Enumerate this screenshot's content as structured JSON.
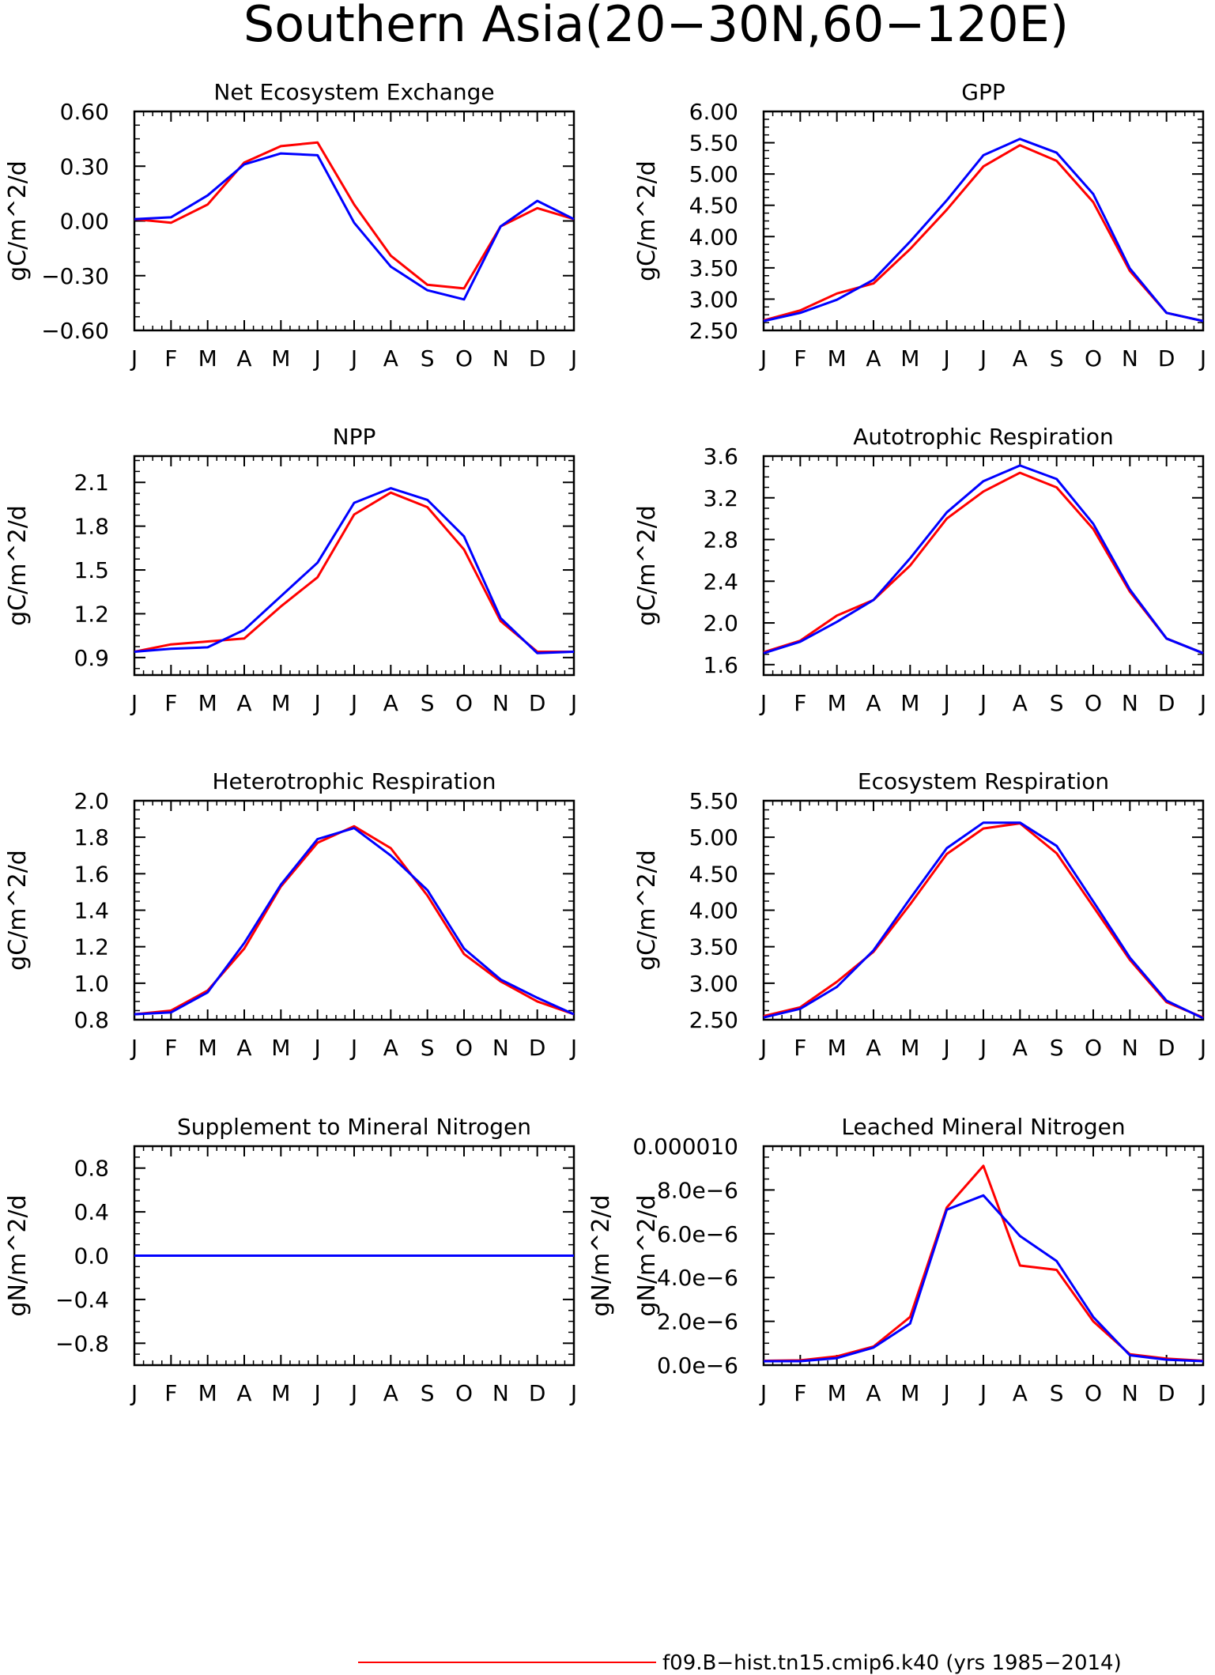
{
  "figure": {
    "title": "Southern Asia(20−30N,60−120E)",
    "legend": [
      {
        "label": "f09.B−hist.tn15.cmip6.k40 (yrs 1985−2014)",
        "color": "#ff0000"
      }
    ],
    "series_colors": [
      "#ff0000",
      "#0000ff"
    ]
  },
  "chart_data": [
    {
      "type": "line",
      "title": "Net Ecosystem Exchange",
      "ylabel": "gC/m^2/d",
      "categories": [
        "J",
        "F",
        "M",
        "A",
        "M",
        "J",
        "J",
        "A",
        "S",
        "O",
        "N",
        "D",
        "J"
      ],
      "ylim": [
        -0.6,
        0.6
      ],
      "yticks": [
        -0.6,
        -0.3,
        0.0,
        0.3,
        0.6
      ],
      "ytick_labels": [
        "−0.60",
        "−0.30",
        "0.00",
        "0.30",
        "0.60"
      ],
      "series": [
        {
          "color": "#ff0000",
          "values": [
            0.01,
            -0.01,
            0.09,
            0.32,
            0.41,
            0.43,
            0.09,
            -0.19,
            -0.35,
            -0.37,
            -0.03,
            0.07,
            0.01
          ]
        },
        {
          "color": "#0000ff",
          "values": [
            0.01,
            0.02,
            0.14,
            0.31,
            0.37,
            0.36,
            -0.01,
            -0.25,
            -0.38,
            -0.43,
            -0.03,
            0.11,
            0.01
          ]
        }
      ]
    },
    {
      "type": "line",
      "title": "GPP",
      "ylabel": "gC/m^2/d",
      "categories": [
        "J",
        "F",
        "M",
        "A",
        "M",
        "J",
        "J",
        "A",
        "S",
        "O",
        "N",
        "D",
        "J"
      ],
      "ylim": [
        2.5,
        6.0
      ],
      "yticks": [
        2.5,
        3.0,
        3.5,
        4.0,
        4.5,
        5.0,
        5.5,
        6.0
      ],
      "ytick_labels": [
        "2.50",
        "3.00",
        "3.50",
        "4.00",
        "4.50",
        "5.00",
        "5.50",
        "6.00"
      ],
      "series": [
        {
          "color": "#ff0000",
          "values": [
            2.66,
            2.82,
            3.09,
            3.25,
            3.8,
            4.43,
            5.12,
            5.46,
            5.21,
            4.55,
            3.45,
            2.78,
            2.65
          ]
        },
        {
          "color": "#0000ff",
          "values": [
            2.65,
            2.78,
            2.99,
            3.31,
            3.92,
            4.58,
            5.3,
            5.56,
            5.34,
            4.68,
            3.49,
            2.78,
            2.65
          ]
        }
      ]
    },
    {
      "type": "line",
      "title": "NPP",
      "ylabel": "gC/m^2/d",
      "categories": [
        "J",
        "F",
        "M",
        "A",
        "M",
        "J",
        "J",
        "A",
        "S",
        "O",
        "N",
        "D",
        "J"
      ],
      "ylim": [
        0.78,
        2.28
      ],
      "yticks": [
        0.9,
        1.2,
        1.5,
        1.8,
        2.1
      ],
      "ytick_labels": [
        "0.9",
        "1.2",
        "1.5",
        "1.8",
        "2.1"
      ],
      "series": [
        {
          "color": "#ff0000",
          "values": [
            0.94,
            0.99,
            1.01,
            1.03,
            1.25,
            1.45,
            1.88,
            2.03,
            1.93,
            1.64,
            1.15,
            0.94,
            0.94
          ]
        },
        {
          "color": "#0000ff",
          "values": [
            0.94,
            0.96,
            0.97,
            1.09,
            1.32,
            1.55,
            1.96,
            2.06,
            1.98,
            1.73,
            1.17,
            0.93,
            0.94
          ]
        }
      ]
    },
    {
      "type": "line",
      "title": "Autotrophic Respiration",
      "ylabel": "gC/m^2/d",
      "categories": [
        "J",
        "F",
        "M",
        "A",
        "M",
        "J",
        "J",
        "A",
        "S",
        "O",
        "N",
        "D",
        "J"
      ],
      "ylim": [
        1.5,
        3.6
      ],
      "yticks": [
        1.6,
        2.0,
        2.4,
        2.8,
        3.2,
        3.6
      ],
      "ytick_labels": [
        "1.6",
        "2.0",
        "2.4",
        "2.8",
        "3.2",
        "3.6"
      ],
      "series": [
        {
          "color": "#ff0000",
          "values": [
            1.72,
            1.83,
            2.07,
            2.22,
            2.55,
            3.0,
            3.26,
            3.44,
            3.3,
            2.9,
            2.3,
            1.85,
            1.71
          ]
        },
        {
          "color": "#0000ff",
          "values": [
            1.71,
            1.82,
            2.01,
            2.22,
            2.62,
            3.06,
            3.36,
            3.51,
            3.38,
            2.95,
            2.32,
            1.85,
            1.71
          ]
        }
      ]
    },
    {
      "type": "line",
      "title": "Heterotrophic Respiration",
      "ylabel": "gC/m^2/d",
      "categories": [
        "J",
        "F",
        "M",
        "A",
        "M",
        "J",
        "J",
        "A",
        "S",
        "O",
        "N",
        "D",
        "J"
      ],
      "ylim": [
        0.8,
        2.0
      ],
      "yticks": [
        0.8,
        1.0,
        1.2,
        1.4,
        1.6,
        1.8,
        2.0
      ],
      "ytick_labels": [
        "0.8",
        "1.0",
        "1.2",
        "1.4",
        "1.6",
        "1.8",
        "2.0"
      ],
      "series": [
        {
          "color": "#ff0000",
          "values": [
            0.83,
            0.85,
            0.96,
            1.19,
            1.53,
            1.77,
            1.86,
            1.74,
            1.48,
            1.16,
            1.01,
            0.9,
            0.83
          ]
        },
        {
          "color": "#0000ff",
          "values": [
            0.83,
            0.84,
            0.95,
            1.22,
            1.54,
            1.79,
            1.85,
            1.7,
            1.51,
            1.19,
            1.02,
            0.92,
            0.83
          ]
        }
      ]
    },
    {
      "type": "line",
      "title": "Ecosystem Respiration",
      "ylabel": "gC/m^2/d",
      "categories": [
        "J",
        "F",
        "M",
        "A",
        "M",
        "J",
        "J",
        "A",
        "S",
        "O",
        "N",
        "D",
        "J"
      ],
      "ylim": [
        2.5,
        5.5
      ],
      "yticks": [
        2.5,
        3.0,
        3.5,
        4.0,
        4.5,
        5.0,
        5.5
      ],
      "ytick_labels": [
        "2.50",
        "3.00",
        "3.50",
        "4.00",
        "4.50",
        "5.00",
        "5.50"
      ],
      "series": [
        {
          "color": "#ff0000",
          "values": [
            2.55,
            2.67,
            3.02,
            3.43,
            4.08,
            4.77,
            5.12,
            5.19,
            4.78,
            4.05,
            3.32,
            2.74,
            2.53
          ]
        },
        {
          "color": "#0000ff",
          "values": [
            2.53,
            2.65,
            2.95,
            3.45,
            4.16,
            4.85,
            5.2,
            5.2,
            4.88,
            4.12,
            3.35,
            2.76,
            2.52
          ]
        }
      ]
    },
    {
      "type": "line",
      "title": "Supplement to Mineral Nitrogen",
      "ylabel": "gN/m^2/d",
      "categories": [
        "J",
        "F",
        "M",
        "A",
        "M",
        "J",
        "J",
        "A",
        "S",
        "O",
        "N",
        "D",
        "J"
      ],
      "ylim": [
        -1.0,
        1.0
      ],
      "yticks": [
        -0.8,
        -0.4,
        0.0,
        0.4,
        0.8
      ],
      "ytick_labels": [
        "−0.8",
        "−0.4",
        "0.0",
        "0.4",
        "0.8"
      ],
      "series": [
        {
          "color": "#ff0000",
          "values": [
            0,
            0,
            0,
            0,
            0,
            0,
            0,
            0,
            0,
            0,
            0,
            0,
            0
          ]
        },
        {
          "color": "#0000ff",
          "values": [
            0,
            0,
            0,
            0,
            0,
            0,
            0,
            0,
            0,
            0,
            0,
            0,
            0
          ]
        }
      ]
    },
    {
      "type": "line",
      "title": "Leached Mineral Nitrogen",
      "ylabel": "gN/m^2/d",
      "categories": [
        "J",
        "F",
        "M",
        "A",
        "M",
        "J",
        "J",
        "A",
        "S",
        "O",
        "N",
        "D",
        "J"
      ],
      "ylim": [
        0.0,
        1e-05
      ],
      "yticks": [
        0.0,
        2e-06,
        4e-06,
        6e-06,
        8e-06,
        1e-05
      ],
      "ytick_labels": [
        "0.0e−6",
        "2.0e−6",
        "4.0e−6",
        "6.0e−6",
        "8.0e−6",
        "0.000010"
      ],
      "series": [
        {
          "color": "#ff0000",
          "values": [
            2e-07,
            2.2e-07,
            4e-07,
            8.5e-07,
            2.2e-06,
            7.2e-06,
            9.1e-06,
            4.55e-06,
            4.35e-06,
            2e-06,
            5e-07,
            3e-07,
            2e-07
          ]
        },
        {
          "color": "#0000ff",
          "values": [
            1.8e-07,
            1.8e-07,
            3.2e-07,
            8e-07,
            1.9e-06,
            7.1e-06,
            7.75e-06,
            5.9e-06,
            4.75e-06,
            2.2e-06,
            4.5e-07,
            2.5e-07,
            1.8e-07
          ]
        }
      ]
    }
  ]
}
